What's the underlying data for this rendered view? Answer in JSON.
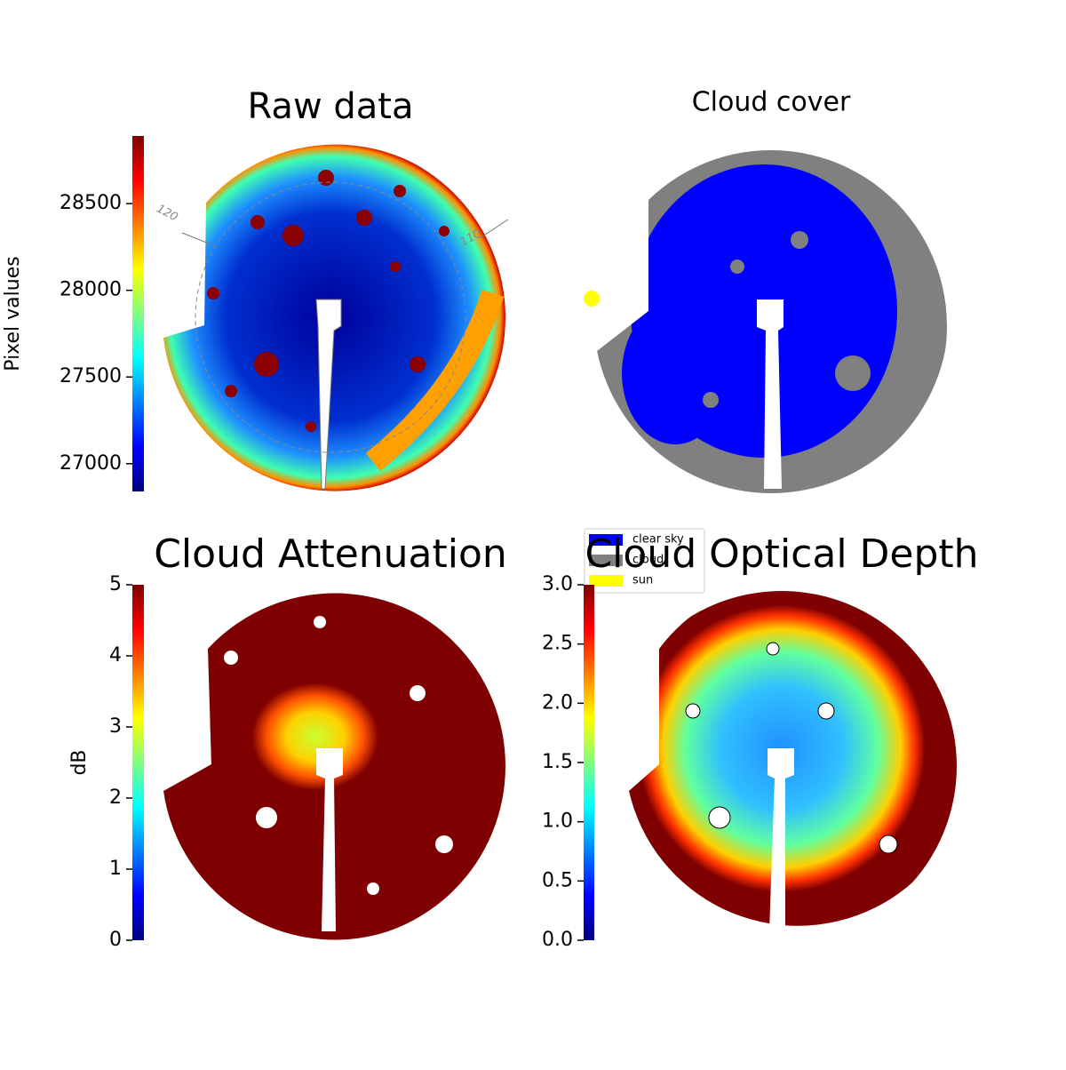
{
  "chart_data": [
    {
      "type": "image",
      "title": "Raw data",
      "colorbar_label": "Pixel values",
      "ylim": [
        26840,
        28890
      ],
      "yticks": [
        27000,
        27500,
        28000,
        28500
      ],
      "colormap": [
        "#00007f",
        "#0000ff",
        "#007fff",
        "#00ffff",
        "#7fff7f",
        "#ffff00",
        "#ff7f00",
        "#ff0000",
        "#7f0000"
      ],
      "annotations": [
        "120",
        "110"
      ]
    },
    {
      "type": "categorical",
      "title": "Cloud cover",
      "series": [
        {
          "name": "clear sky",
          "color": "#0000ff"
        },
        {
          "name": "cloud",
          "color": "#808080"
        },
        {
          "name": "sun",
          "color": "#ffff00"
        }
      ]
    },
    {
      "type": "image",
      "title": "Cloud Attenuation",
      "colorbar_label": "dB",
      "ylim": [
        0,
        5
      ],
      "yticks": [
        0,
        1,
        2,
        3,
        4,
        5
      ],
      "colormap": [
        "#00007f",
        "#0000ff",
        "#007fff",
        "#00ffff",
        "#7fff7f",
        "#ffff00",
        "#ff7f00",
        "#ff0000",
        "#7f0000"
      ]
    },
    {
      "type": "image",
      "title": "Cloud Optical Depth",
      "ylim": [
        0,
        3
      ],
      "yticks": [
        {
          "value": 0,
          "label": "0.0"
        },
        {
          "value": 0.5,
          "label": "0.5"
        },
        {
          "value": 1,
          "label": "1.0"
        },
        {
          "value": 1.5,
          "label": "1.5"
        },
        {
          "value": 2,
          "label": "2.0"
        },
        {
          "value": 2.5,
          "label": "2.5"
        },
        {
          "value": 3,
          "label": "3.0"
        }
      ],
      "colormap": [
        "#00007f",
        "#0000ff",
        "#007fff",
        "#00ffff",
        "#7fff7f",
        "#ffff00",
        "#ff7f00",
        "#ff0000",
        "#7f0000"
      ]
    }
  ]
}
